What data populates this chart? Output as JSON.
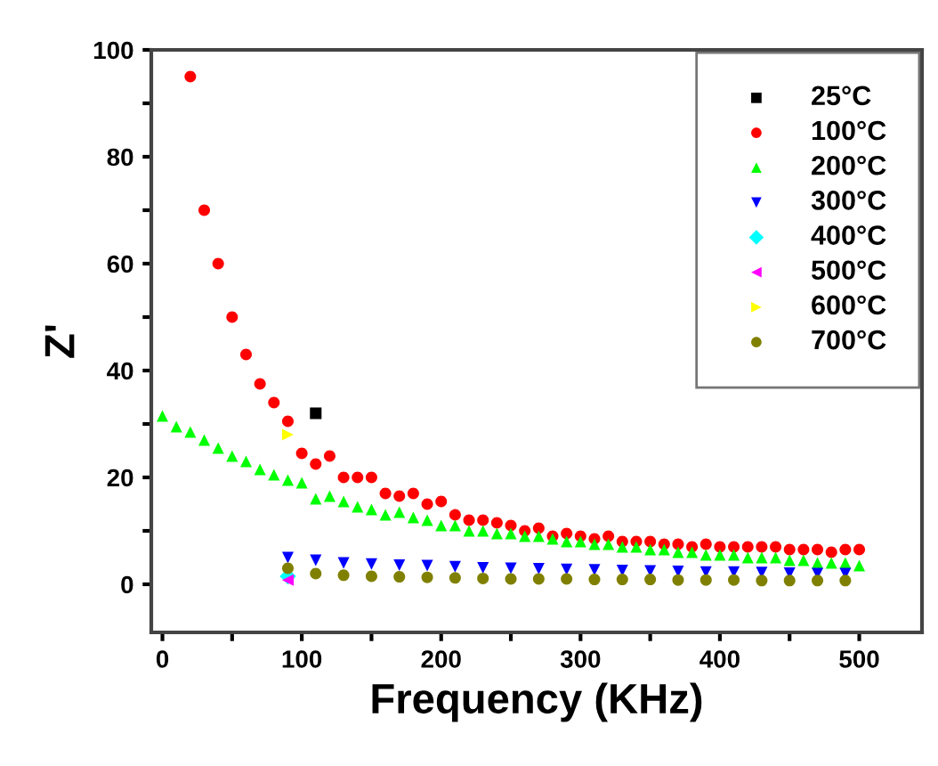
{
  "chart_data": {
    "type": "scatter",
    "xlabel": "Frequency (KHz)",
    "ylabel": "Z'",
    "xlim": [
      -8,
      545
    ],
    "ylim": [
      -9,
      100
    ],
    "xticks": [
      0,
      {
        "value": 50,
        "label": null
      },
      100,
      {
        "value": 150,
        "label": null
      },
      200,
      {
        "value": 250,
        "label": null
      },
      300,
      {
        "value": 350,
        "label": null
      },
      400,
      {
        "value": 450,
        "label": null
      },
      500
    ],
    "yticks": [
      0,
      {
        "value": 10,
        "label": null
      },
      20,
      {
        "value": 30,
        "label": null
      },
      40,
      {
        "value": 50,
        "label": null
      },
      60,
      {
        "value": 70,
        "label": null
      },
      80,
      {
        "value": 90,
        "label": null
      },
      100
    ],
    "grid": false,
    "legend": "top right",
    "series": [
      {
        "name": "25°C",
        "color": "#000000",
        "marker": "square",
        "x": [
          110
        ],
        "values": [
          32
        ]
      },
      {
        "name": "100°C",
        "color": "#ff0000",
        "marker": "circle",
        "x": [
          20,
          30,
          40,
          50,
          60,
          70,
          80,
          90,
          100,
          110,
          120,
          130,
          140,
          150,
          160,
          170,
          180,
          190,
          200,
          210,
          220,
          230,
          240,
          250,
          260,
          270,
          280,
          290,
          300,
          310,
          320,
          330,
          340,
          350,
          360,
          370,
          380,
          390,
          400,
          410,
          420,
          430,
          440,
          450,
          460,
          470,
          480,
          490,
          500
        ],
        "values": [
          95,
          70,
          60,
          50,
          43,
          37.5,
          34,
          30.5,
          24.5,
          22.5,
          24,
          20,
          20,
          20,
          17,
          16.5,
          17,
          15,
          15.5,
          13,
          12,
          12,
          11.5,
          11,
          10,
          10.5,
          9,
          9.5,
          9,
          8.5,
          9,
          8,
          8,
          8,
          7.5,
          7.5,
          7,
          7.5,
          7,
          7,
          7,
          7,
          7,
          6.5,
          6.5,
          6.5,
          6,
          6.5,
          6.5
        ]
      },
      {
        "name": "200°C",
        "color": "#00ff00",
        "marker": "triangle",
        "x": [
          0,
          10,
          20,
          30,
          40,
          50,
          60,
          70,
          80,
          90,
          100,
          110,
          120,
          130,
          140,
          150,
          160,
          170,
          180,
          190,
          200,
          210,
          220,
          230,
          240,
          250,
          260,
          270,
          280,
          290,
          300,
          310,
          320,
          330,
          340,
          350,
          360,
          370,
          380,
          390,
          400,
          410,
          420,
          430,
          440,
          450,
          460,
          470,
          480,
          490,
          500
        ],
        "values": [
          31.5,
          29.5,
          28.5,
          27,
          25.5,
          24,
          23,
          21.5,
          20.5,
          19.5,
          19,
          16,
          16.5,
          15.5,
          14.5,
          14,
          13,
          13.5,
          12.5,
          12,
          11,
          11,
          10,
          10,
          9.5,
          9.5,
          9,
          9,
          8.5,
          8,
          8,
          7.5,
          7.5,
          7,
          7,
          6.5,
          6.5,
          6,
          6,
          5.5,
          5.5,
          5.5,
          5,
          5,
          5,
          4.5,
          4.5,
          4,
          4,
          4,
          3.5
        ]
      },
      {
        "name": "300°C",
        "color": "#0000ff",
        "marker": "triangle-down",
        "x": [
          90,
          110,
          130,
          150,
          170,
          190,
          210,
          230,
          250,
          270,
          290,
          310,
          330,
          350,
          370,
          390,
          410,
          430,
          450,
          470,
          490
        ],
        "values": [
          5,
          4.5,
          4,
          3.8,
          3.6,
          3.5,
          3.3,
          3.1,
          3,
          2.9,
          2.8,
          2.7,
          2.6,
          2.5,
          2.4,
          2.3,
          2.3,
          2.2,
          2.1,
          2,
          2
        ]
      },
      {
        "name": "400°C",
        "color": "#00ffff",
        "marker": "diamond",
        "x": [
          90
        ],
        "values": [
          1.5
        ]
      },
      {
        "name": "500°C",
        "color": "#ff00ff",
        "marker": "triangle-left",
        "x": [
          90
        ],
        "values": [
          0.8
        ]
      },
      {
        "name": "600°C",
        "color": "#ffff00",
        "marker": "triangle-right",
        "x": [
          90
        ],
        "values": [
          28
        ]
      },
      {
        "name": "700°C",
        "color": "#808000",
        "marker": "circle",
        "x": [
          90,
          110,
          130,
          150,
          170,
          190,
          210,
          230,
          250,
          270,
          290,
          310,
          330,
          350,
          370,
          390,
          410,
          430,
          450,
          470,
          490
        ],
        "values": [
          3,
          2,
          1.7,
          1.5,
          1.4,
          1.3,
          1.2,
          1.1,
          1,
          1,
          1,
          0.9,
          0.9,
          0.9,
          0.8,
          0.8,
          0.8,
          0.7,
          0.7,
          0.7,
          0.7
        ]
      }
    ]
  }
}
